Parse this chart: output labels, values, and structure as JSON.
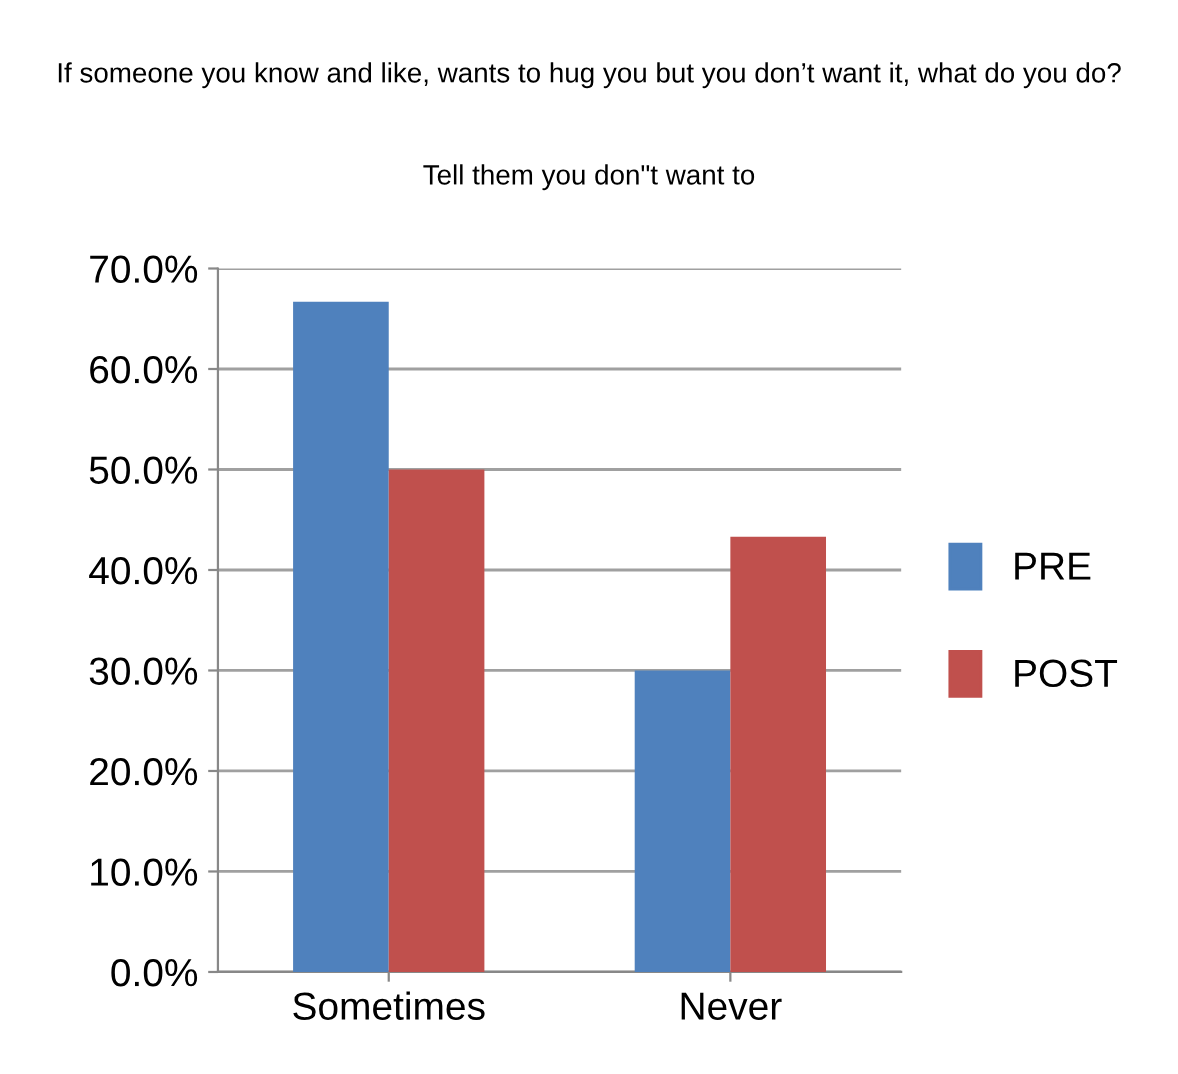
{
  "chart_data": {
    "type": "bar",
    "title": "If someone you know and like, wants to hug you but you don’t want it, what do you do?",
    "subtitle": "Tell them you don\"t want to",
    "categories": [
      "Sometimes",
      "Never"
    ],
    "series": [
      {
        "name": "PRE",
        "color": "#4f81bd",
        "values": [
          66.7,
          30.0
        ]
      },
      {
        "name": "POST",
        "color": "#c0504d",
        "values": [
          50.0,
          43.3
        ]
      }
    ],
    "ylim": [
      0,
      70
    ],
    "yticks": [
      {
        "value": 0,
        "label": "0.0%"
      },
      {
        "value": 10,
        "label": "10.0%"
      },
      {
        "value": 20,
        "label": "20.0%"
      },
      {
        "value": 30,
        "label": "30.0%"
      },
      {
        "value": 40,
        "label": "40.0%"
      },
      {
        "value": 50,
        "label": "50.0%"
      },
      {
        "value": 60,
        "label": "60.0%"
      },
      {
        "value": 70,
        "label": "70.0%"
      }
    ],
    "grid": "y",
    "legend": "right"
  }
}
